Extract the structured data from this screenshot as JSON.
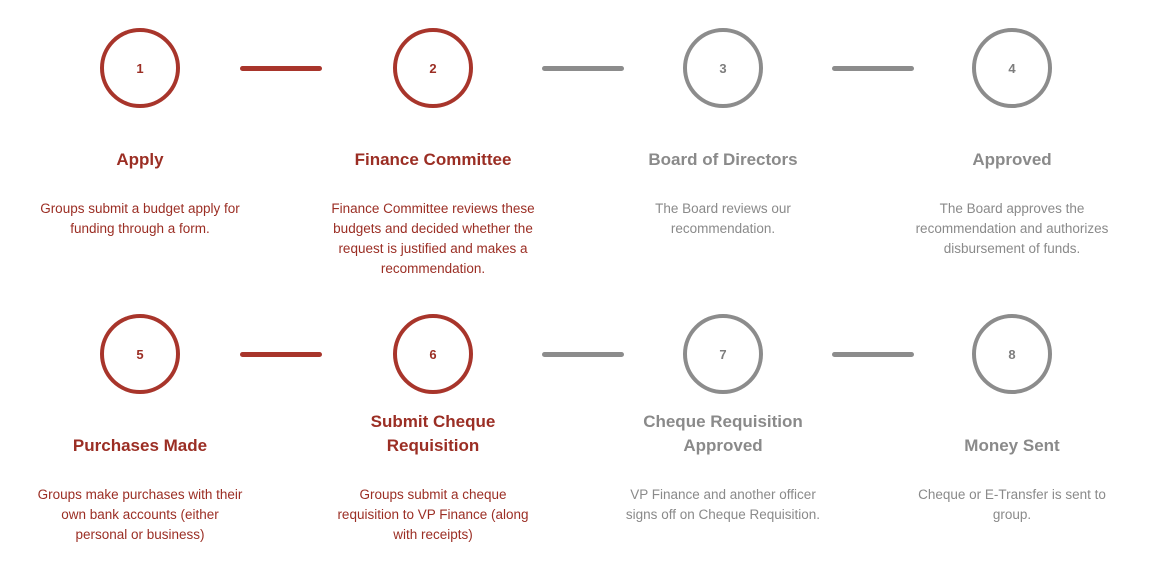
{
  "colors": {
    "active": "#a8352b",
    "inactive": "#8c8c8c"
  },
  "steps": [
    {
      "number": "1",
      "title": "Apply",
      "description": "Groups submit a budget apply for funding through a form.",
      "state": "active"
    },
    {
      "number": "2",
      "title": "Finance Committee",
      "description": "Finance Committee reviews these budgets and decided whether the request is justified and makes a recommendation.",
      "state": "active"
    },
    {
      "number": "3",
      "title": "Board of Directors",
      "description": "The Board reviews our recommendation.",
      "state": "inactive"
    },
    {
      "number": "4",
      "title": "Approved",
      "description": "The Board approves the recommendation and authorizes disbursement of funds.",
      "state": "inactive"
    },
    {
      "number": "5",
      "title": "Purchases Made",
      "description": "Groups make purchases with their own bank accounts (either personal or business)",
      "state": "active"
    },
    {
      "number": "6",
      "title": "Submit Cheque Requisition",
      "description": "Groups submit a cheque requisition to VP Finance (along with receipts)",
      "state": "active"
    },
    {
      "number": "7",
      "title": "Cheque Requisition Approved",
      "description": "VP Finance and another officer signs off on Cheque Requisition.",
      "state": "inactive"
    },
    {
      "number": "8",
      "title": "Money Sent",
      "description": "Cheque or E-Transfer is sent to group.",
      "state": "inactive"
    }
  ],
  "connectors": [
    {
      "from": 1,
      "to": 2,
      "state": "active"
    },
    {
      "from": 2,
      "to": 3,
      "state": "inactive"
    },
    {
      "from": 3,
      "to": 4,
      "state": "inactive"
    },
    {
      "from": 5,
      "to": 6,
      "state": "active"
    },
    {
      "from": 6,
      "to": 7,
      "state": "inactive"
    },
    {
      "from": 7,
      "to": 8,
      "state": "inactive"
    }
  ]
}
